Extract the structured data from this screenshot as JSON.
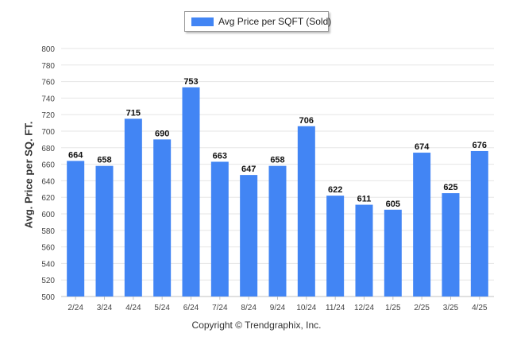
{
  "legend": {
    "label": "Avg Price per SQFT (Sold)"
  },
  "footer": {
    "copyright": "Copyright © Trendgraphix, Inc."
  },
  "colors": {
    "bar": "#4285f4",
    "grid": "#e6e6e6",
    "axis": "#c0c0c0"
  },
  "chart_data": {
    "type": "bar",
    "title": "",
    "xlabel": "",
    "ylabel": "Avg. Price per SQ. FT.",
    "ylim": [
      500,
      800
    ],
    "yticks": [
      500,
      520,
      540,
      560,
      580,
      600,
      620,
      640,
      660,
      680,
      700,
      720,
      740,
      760,
      780,
      800
    ],
    "grid": true,
    "legend_position": "top",
    "categories": [
      "2/24",
      "3/24",
      "4/24",
      "5/24",
      "6/24",
      "7/24",
      "8/24",
      "9/24",
      "10/24",
      "11/24",
      "12/24",
      "1/25",
      "2/25",
      "3/25",
      "4/25"
    ],
    "series": [
      {
        "name": "Avg Price per SQFT (Sold)",
        "values": [
          664,
          658,
          715,
          690,
          753,
          663,
          647,
          658,
          706,
          622,
          611,
          605,
          674,
          625,
          676
        ]
      }
    ]
  }
}
